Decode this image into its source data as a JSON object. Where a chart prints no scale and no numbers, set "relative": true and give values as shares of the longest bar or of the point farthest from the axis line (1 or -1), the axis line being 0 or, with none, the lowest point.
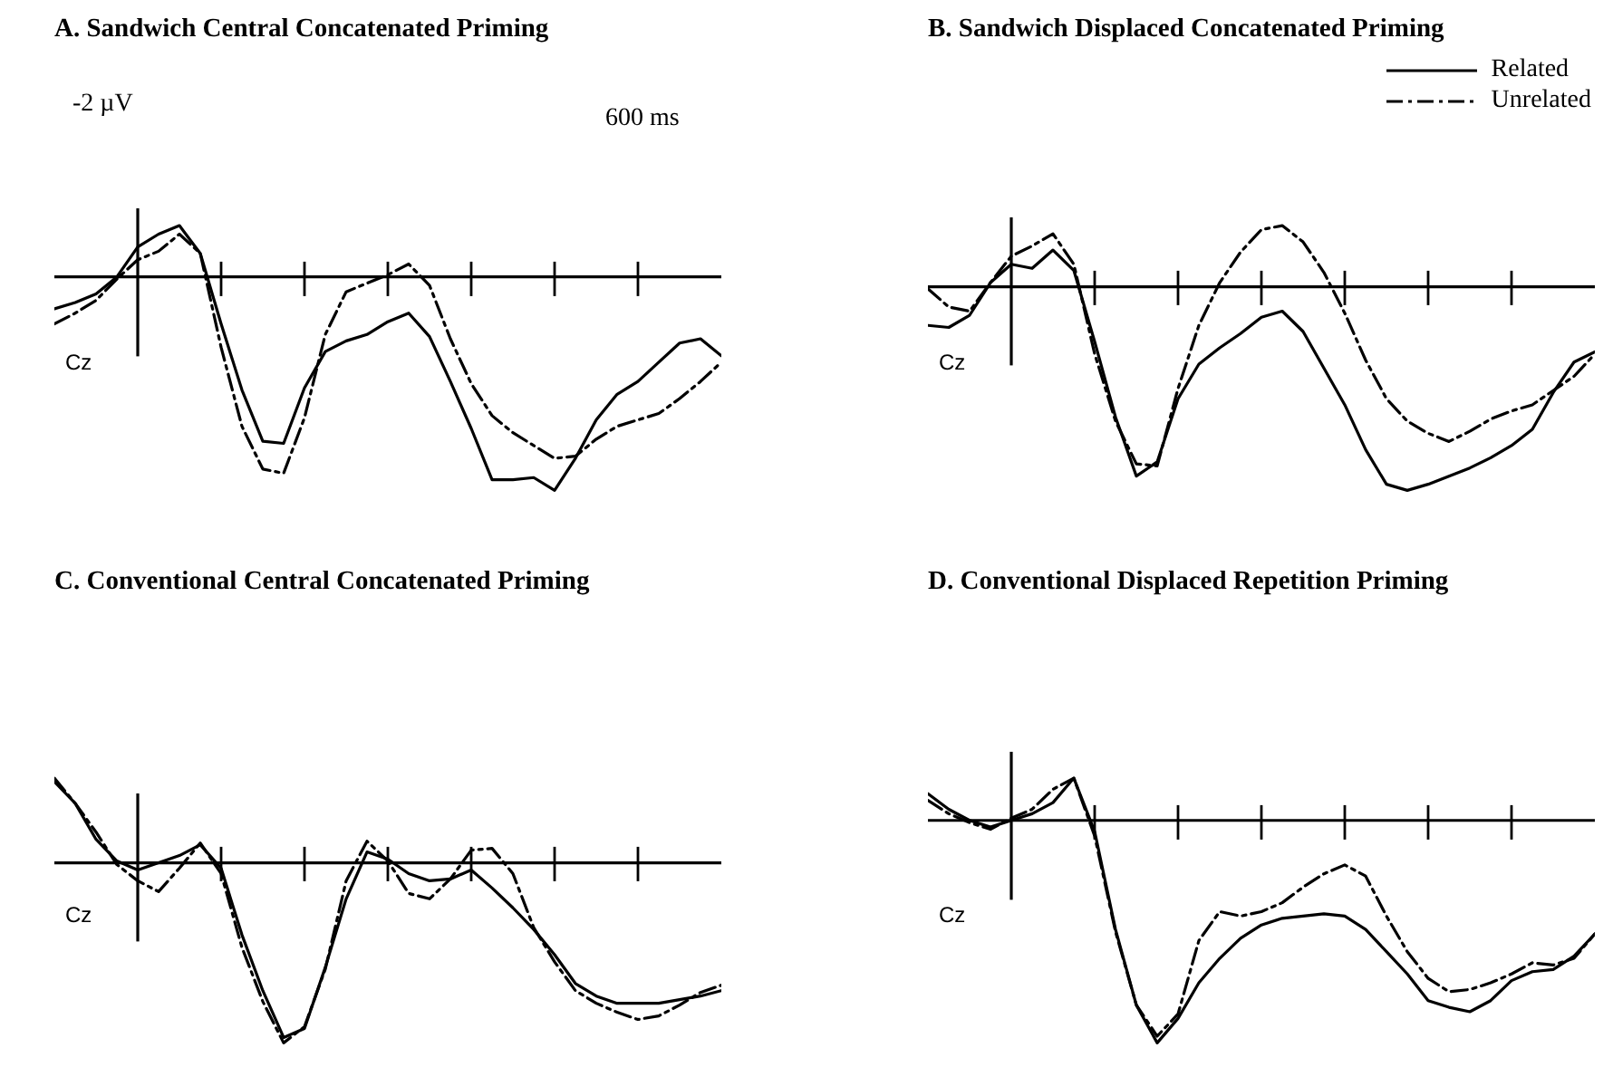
{
  "chart_data": [
    {
      "type": "line",
      "title": "A.  Sandwich Central Concatenated Priming",
      "ylabel": "Cz",
      "relative": true,
      "tick_labels": false,
      "annotations": [
        "-2 µV",
        "600 ms"
      ],
      "categories": [
        null,
        null,
        null,
        null,
        null,
        null,
        null,
        null,
        null,
        null,
        null,
        null,
        null,
        null,
        null,
        null,
        null,
        null,
        null,
        null,
        null,
        null,
        null,
        null,
        null,
        null,
        null,
        null,
        null,
        null,
        null,
        null,
        null
      ],
      "series": [
        {
          "color": "#000000",
          "line_style": "solid",
          "values": [
            -0.15,
            -0.12,
            -0.08,
            0.0,
            0.14,
            0.2,
            0.24,
            0.11,
            -0.22,
            -0.53,
            -0.77,
            -0.78,
            -0.52,
            -0.35,
            -0.3,
            -0.27,
            -0.21,
            -0.17,
            -0.28,
            -0.49,
            -0.71,
            -0.95,
            -0.95,
            -0.94,
            -1,
            -0.85,
            -0.67,
            -0.55,
            -0.49,
            -0.4,
            -0.31,
            -0.29,
            -0.37
          ]
        },
        {
          "color": "#000000",
          "line_style": "dashed",
          "values": [
            -0.22,
            -0.17,
            -0.11,
            -0.01,
            0.08,
            0.12,
            0.2,
            0.11,
            -0.33,
            -0.7,
            -0.9,
            -0.92,
            -0.66,
            -0.27,
            -0.07,
            -0.03,
            0.01,
            0.06,
            -0.04,
            -0.29,
            -0.5,
            -0.65,
            -0.73,
            -0.79,
            -0.85,
            -0.84,
            -0.76,
            -0.7,
            -0.67,
            -0.64,
            -0.57,
            -0.49,
            -0.4
          ]
        }
      ]
    },
    {
      "type": "line",
      "title": "B.  Sandwich Displaced Concatenated Priming",
      "ylabel": "Cz",
      "relative": true,
      "tick_labels": false,
      "legend": "top right",
      "categories": [
        null,
        null,
        null,
        null,
        null,
        null,
        null,
        null,
        null,
        null,
        null,
        null,
        null,
        null,
        null,
        null,
        null,
        null,
        null,
        null,
        null,
        null,
        null,
        null,
        null,
        null,
        null,
        null,
        null,
        null,
        null,
        null,
        null
      ],
      "series": [
        {
          "name": "Related",
          "color": "#000000",
          "line_style": "solid",
          "values": [
            -0.19,
            -0.2,
            -0.14,
            0.02,
            0.11,
            0.09,
            0.18,
            0.08,
            -0.27,
            -0.64,
            -0.93,
            -0.86,
            -0.55,
            -0.38,
            -0.3,
            -0.23,
            -0.15,
            -0.12,
            -0.22,
            -0.4,
            -0.58,
            -0.8,
            -0.97,
            -1,
            -0.97,
            -0.93,
            -0.89,
            -0.84,
            -0.78,
            -0.7,
            -0.52,
            -0.37,
            -0.32
          ]
        },
        {
          "name": "Unrelated",
          "color": "#000000",
          "line_style": "dashed",
          "values": [
            -0.01,
            -0.1,
            -0.12,
            0.02,
            0.15,
            0.2,
            0.26,
            0.11,
            -0.33,
            -0.66,
            -0.87,
            -0.88,
            -0.5,
            -0.19,
            0.02,
            0.17,
            0.28,
            0.3,
            0.22,
            0.07,
            -0.13,
            -0.36,
            -0.55,
            -0.66,
            -0.72,
            -0.76,
            -0.71,
            -0.65,
            -0.61,
            -0.58,
            -0.51,
            -0.44,
            -0.33
          ]
        }
      ]
    },
    {
      "type": "line",
      "title": "C.  Conventional Central Concatenated Priming",
      "ylabel": "Cz",
      "relative": true,
      "tick_labels": false,
      "categories": [
        null,
        null,
        null,
        null,
        null,
        null,
        null,
        null,
        null,
        null,
        null,
        null,
        null,
        null,
        null,
        null,
        null,
        null,
        null,
        null,
        null,
        null,
        null,
        null,
        null,
        null,
        null,
        null,
        null,
        null,
        null,
        null,
        null
      ],
      "series": [
        {
          "color": "#000000",
          "line_style": "solid",
          "values": [
            0.45,
            0.33,
            0.13,
            0.01,
            -0.04,
            0.0,
            0.04,
            0.1,
            -0.03,
            -0.4,
            -0.71,
            -0.97,
            -0.92,
            -0.58,
            -0.2,
            0.06,
            0.02,
            -0.06,
            -0.1,
            -0.09,
            -0.04,
            -0.14,
            -0.25,
            -0.37,
            -0.51,
            -0.67,
            -0.74,
            -0.78,
            -0.78,
            -0.78,
            -0.76,
            -0.74,
            -0.71
          ]
        },
        {
          "color": "#000000",
          "line_style": "dashed",
          "values": [
            0.47,
            0.33,
            0.17,
            -0.01,
            -0.1,
            -0.16,
            -0.03,
            0.11,
            -0.06,
            -0.47,
            -0.77,
            -1,
            -0.91,
            -0.59,
            -0.1,
            0.12,
            0.01,
            -0.17,
            -0.2,
            -0.09,
            0.07,
            0.08,
            -0.06,
            -0.36,
            -0.55,
            -0.71,
            -0.78,
            -0.83,
            -0.87,
            -0.85,
            -0.79,
            -0.72,
            -0.68
          ]
        }
      ]
    },
    {
      "type": "line",
      "title": "D.  Conventional Displaced Repetition Priming",
      "ylabel": "Cz",
      "relative": true,
      "tick_labels": false,
      "categories": [
        null,
        null,
        null,
        null,
        null,
        null,
        null,
        null,
        null,
        null,
        null,
        null,
        null,
        null,
        null,
        null,
        null,
        null,
        null,
        null,
        null,
        null,
        null,
        null,
        null,
        null,
        null,
        null,
        null,
        null,
        null,
        null,
        null
      ],
      "series": [
        {
          "color": "#000000",
          "line_style": "solid",
          "values": [
            0.12,
            0.05,
            0.0,
            -0.03,
            0.0,
            0.03,
            0.08,
            0.19,
            -0.05,
            -0.49,
            -0.83,
            -1,
            -0.89,
            -0.73,
            -0.62,
            -0.53,
            -0.47,
            -0.44,
            -0.43,
            -0.42,
            -0.43,
            -0.49,
            -0.59,
            -0.69,
            -0.81,
            -0.84,
            -0.86,
            -0.81,
            -0.72,
            -0.68,
            -0.67,
            -0.61,
            -0.51
          ]
        },
        {
          "color": "#000000",
          "line_style": "dashed",
          "values": [
            0.09,
            0.03,
            -0.01,
            -0.04,
            0.01,
            0.05,
            0.14,
            0.19,
            -0.07,
            -0.5,
            -0.83,
            -0.97,
            -0.87,
            -0.54,
            -0.41,
            -0.43,
            -0.41,
            -0.37,
            -0.3,
            -0.24,
            -0.2,
            -0.25,
            -0.43,
            -0.59,
            -0.71,
            -0.77,
            -0.76,
            -0.73,
            -0.69,
            -0.64,
            -0.65,
            -0.62,
            -0.51
          ]
        }
      ]
    }
  ]
}
